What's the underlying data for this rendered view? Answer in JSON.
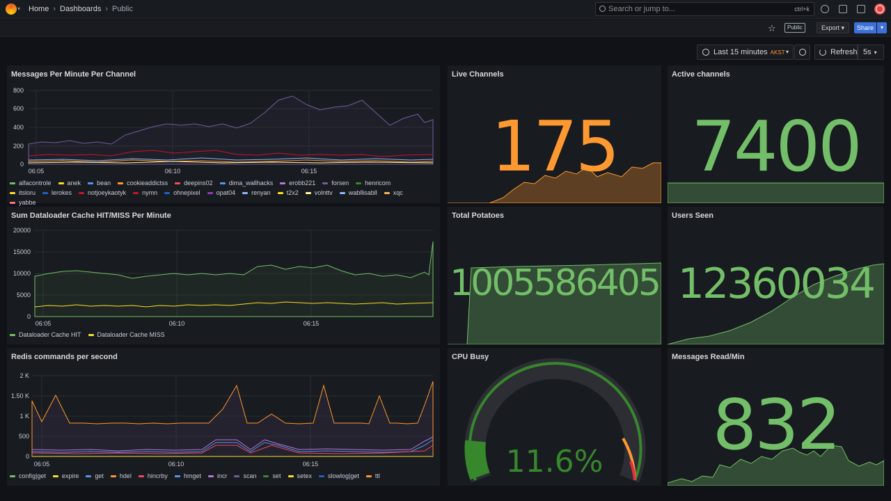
{
  "nav": {
    "breadcrumbs": [
      "Home",
      "Dashboards",
      "Public"
    ],
    "search_placeholder": "Search or jump to...",
    "search_shortcut": "ctrl+k"
  },
  "toolbar": {
    "public_badge": "Public",
    "export_label": "Export",
    "share_label": "Share",
    "time_range": "Last 15 minutes",
    "timezone": "AKST",
    "refresh_label": "Refresh",
    "refresh_interval": "5s"
  },
  "panels": {
    "messages_per_minute": {
      "title": "Messages Per Minute Per Channel"
    },
    "live_channels": {
      "title": "Live Channels",
      "value": "175",
      "color": "#ff9830"
    },
    "active_channels": {
      "title": "Active channels",
      "value": "7400",
      "color": "#73bf69"
    },
    "dataloader": {
      "title": "Sum Dataloader Cache HIT/MISS Per Minute"
    },
    "total_potatoes": {
      "title": "Total Potatoes",
      "value": "1005586405",
      "color": "#73bf69"
    },
    "users_seen": {
      "title": "Users Seen",
      "value": "12360034",
      "color": "#73bf69"
    },
    "redis": {
      "title": "Redis commands per second"
    },
    "cpu_busy": {
      "title": "CPU Busy",
      "value": "11.6%",
      "percent": 11.6,
      "color": "#37872d"
    },
    "messages_read": {
      "title": "Messages Read/Min",
      "value": "832",
      "color": "#73bf69"
    }
  },
  "chart_data": [
    {
      "type": "line",
      "title": "Messages Per Minute Per Channel",
      "x": [
        "06:05",
        "06:10",
        "06:15"
      ],
      "ylim": [
        0,
        800
      ],
      "yticks": [
        "800",
        "600",
        "400",
        "200",
        "0"
      ],
      "series": [
        {
          "name": "alfacontrole",
          "color": "#73bf69"
        },
        {
          "name": "anek",
          "color": "#fade2a"
        },
        {
          "name": "bean",
          "color": "#5794f2"
        },
        {
          "name": "cookieaddictss",
          "color": "#ff9830"
        },
        {
          "name": "deepins02",
          "color": "#f2495c"
        },
        {
          "name": "dima_wallhacks",
          "color": "#5794f2"
        },
        {
          "name": "erobb221",
          "color": "#b877d9"
        },
        {
          "name": "forsen",
          "color": "#705da0"
        },
        {
          "name": "henricom",
          "color": "#37872d"
        },
        {
          "name": "itsloru",
          "color": "#fade2a"
        },
        {
          "name": "lerokes",
          "color": "#1f60c4"
        },
        {
          "name": "notjoeykaotyk",
          "color": "#c4162a"
        },
        {
          "name": "nymn",
          "color": "#c4162a"
        },
        {
          "name": "ohnepixel",
          "color": "#1f60c4"
        },
        {
          "name": "opat04",
          "color": "#8f3bb8"
        },
        {
          "name": "renyan",
          "color": "#8ab8ff"
        },
        {
          "name": "t2x2",
          "color": "#fade2a"
        },
        {
          "name": "volnttv",
          "color": "#fff899"
        },
        {
          "name": "wabllisabll",
          "color": "#8ab8ff"
        },
        {
          "name": "xqc",
          "color": "#ffb357"
        },
        {
          "name": "yabbe",
          "color": "#ff7383"
        }
      ]
    },
    {
      "type": "line",
      "title": "Sum Dataloader Cache HIT/MISS Per Minute",
      "x": [
        "06:05",
        "06:10",
        "06:15"
      ],
      "ylim": [
        0,
        20000
      ],
      "yticks": [
        "20000",
        "15000",
        "10000",
        "5000",
        "0"
      ],
      "series": [
        {
          "name": "Dataloader Cache HIT",
          "color": "#73bf69"
        },
        {
          "name": "Dataloader Cache MISS",
          "color": "#fade2a"
        }
      ]
    },
    {
      "type": "line",
      "title": "Redis commands per second",
      "x": [
        "06:05",
        "06:10",
        "06:15"
      ],
      "ylim": [
        0,
        2000
      ],
      "yticks": [
        "2 K",
        "1.50 K",
        "1 K",
        "500",
        "0"
      ],
      "series": [
        {
          "name": "config|get",
          "color": "#73bf69"
        },
        {
          "name": "expire",
          "color": "#fade2a"
        },
        {
          "name": "get",
          "color": "#5794f2"
        },
        {
          "name": "hdel",
          "color": "#ff9830"
        },
        {
          "name": "hincrby",
          "color": "#f2495c"
        },
        {
          "name": "hmget",
          "color": "#5794f2"
        },
        {
          "name": "incr",
          "color": "#b877d9"
        },
        {
          "name": "scan",
          "color": "#705da0"
        },
        {
          "name": "set",
          "color": "#37872d"
        },
        {
          "name": "setex",
          "color": "#fade2a"
        },
        {
          "name": "slowlog|get",
          "color": "#1f60c4"
        },
        {
          "name": "ttl",
          "color": "#ff9830"
        }
      ]
    }
  ]
}
